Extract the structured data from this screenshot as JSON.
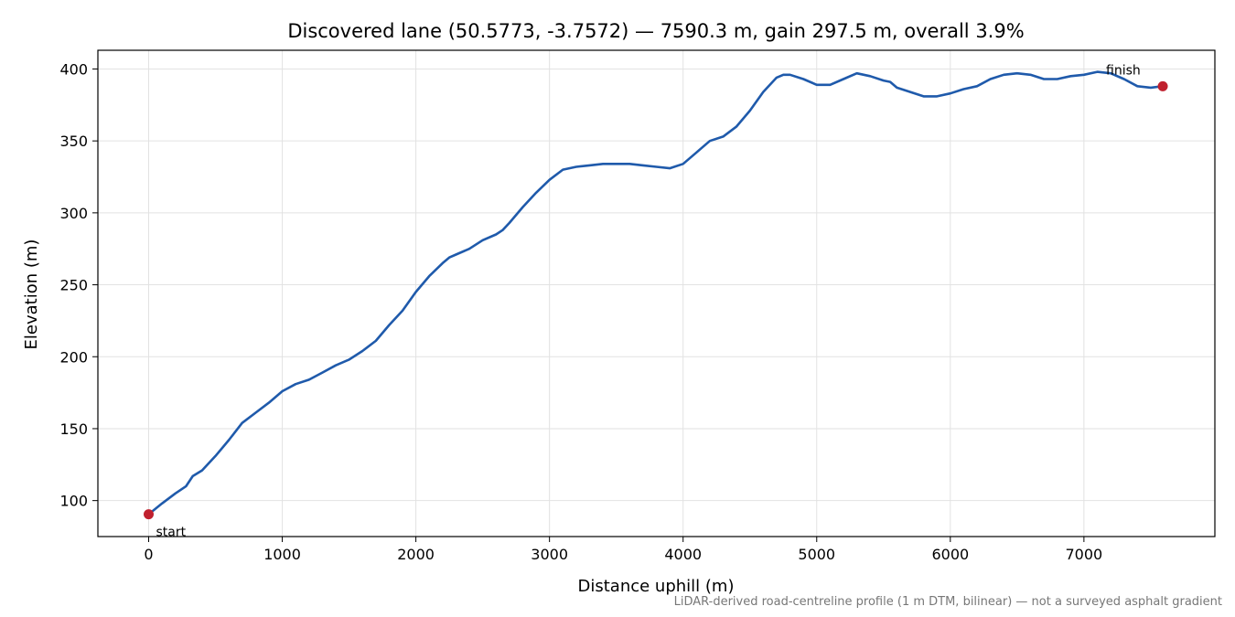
{
  "chart_data": {
    "type": "line",
    "title": "Discovered lane (50.5773, -3.7572) — 7590.3 m, gain 297.5 m, overall 3.9%",
    "xlabel": "Distance uphill (m)",
    "ylabel": "Elevation (m)",
    "xlim": [
      -380,
      7980
    ],
    "ylim": [
      75,
      413
    ],
    "xticks": [
      0,
      1000,
      2000,
      3000,
      4000,
      5000,
      6000,
      7000
    ],
    "yticks": [
      100,
      150,
      200,
      250,
      300,
      350,
      400
    ],
    "grid": true,
    "line_color": "#1f5aab",
    "marker_color": "#c0202e",
    "series": [
      {
        "x": [
          0,
          100,
          200,
          280,
          330,
          400,
          500,
          600,
          700,
          800,
          900,
          1000,
          1100,
          1200,
          1300,
          1400,
          1500,
          1600,
          1700,
          1800,
          1900,
          2000,
          2100,
          2200,
          2250,
          2300,
          2400,
          2500,
          2600,
          2650,
          2700,
          2800,
          2900,
          3000,
          3100,
          3200,
          3300,
          3400,
          3500,
          3600,
          3700,
          3800,
          3900,
          4000,
          4100,
          4200,
          4300,
          4400,
          4500,
          4600,
          4700,
          4750,
          4800,
          4900,
          5000,
          5100,
          5200,
          5300,
          5400,
          5500,
          5550,
          5600,
          5700,
          5800,
          5900,
          6000,
          6100,
          6200,
          6300,
          6400,
          6500,
          6600,
          6700,
          6800,
          6900,
          7000,
          7100,
          7200,
          7300,
          7400,
          7500,
          7590
        ],
        "y": [
          90.5,
          98,
          105,
          110,
          117,
          121,
          131,
          142,
          154,
          161,
          168,
          176,
          181,
          184,
          189,
          194,
          198,
          204,
          211,
          222,
          232,
          245,
          256,
          265,
          269,
          271,
          275,
          281,
          285,
          288,
          293,
          304,
          314,
          323,
          330,
          332,
          333,
          334,
          334,
          334,
          333,
          332,
          331,
          334,
          342,
          350,
          353,
          360,
          371,
          384,
          394,
          396,
          396,
          393,
          389,
          389,
          393,
          397,
          395,
          392,
          391,
          387,
          384,
          381,
          381,
          383,
          386,
          388,
          393,
          396,
          397,
          396,
          393,
          393,
          395,
          396,
          398,
          397,
          393,
          388,
          387,
          388
        ]
      }
    ],
    "annotations": [
      {
        "text": "start",
        "x": 0,
        "y": 90.5
      },
      {
        "text": "finish",
        "x": 7590,
        "y": 388
      }
    ],
    "footnote": "LiDAR-derived road-centreline profile (1 m DTM, bilinear) — not a surveyed asphalt gradient"
  }
}
